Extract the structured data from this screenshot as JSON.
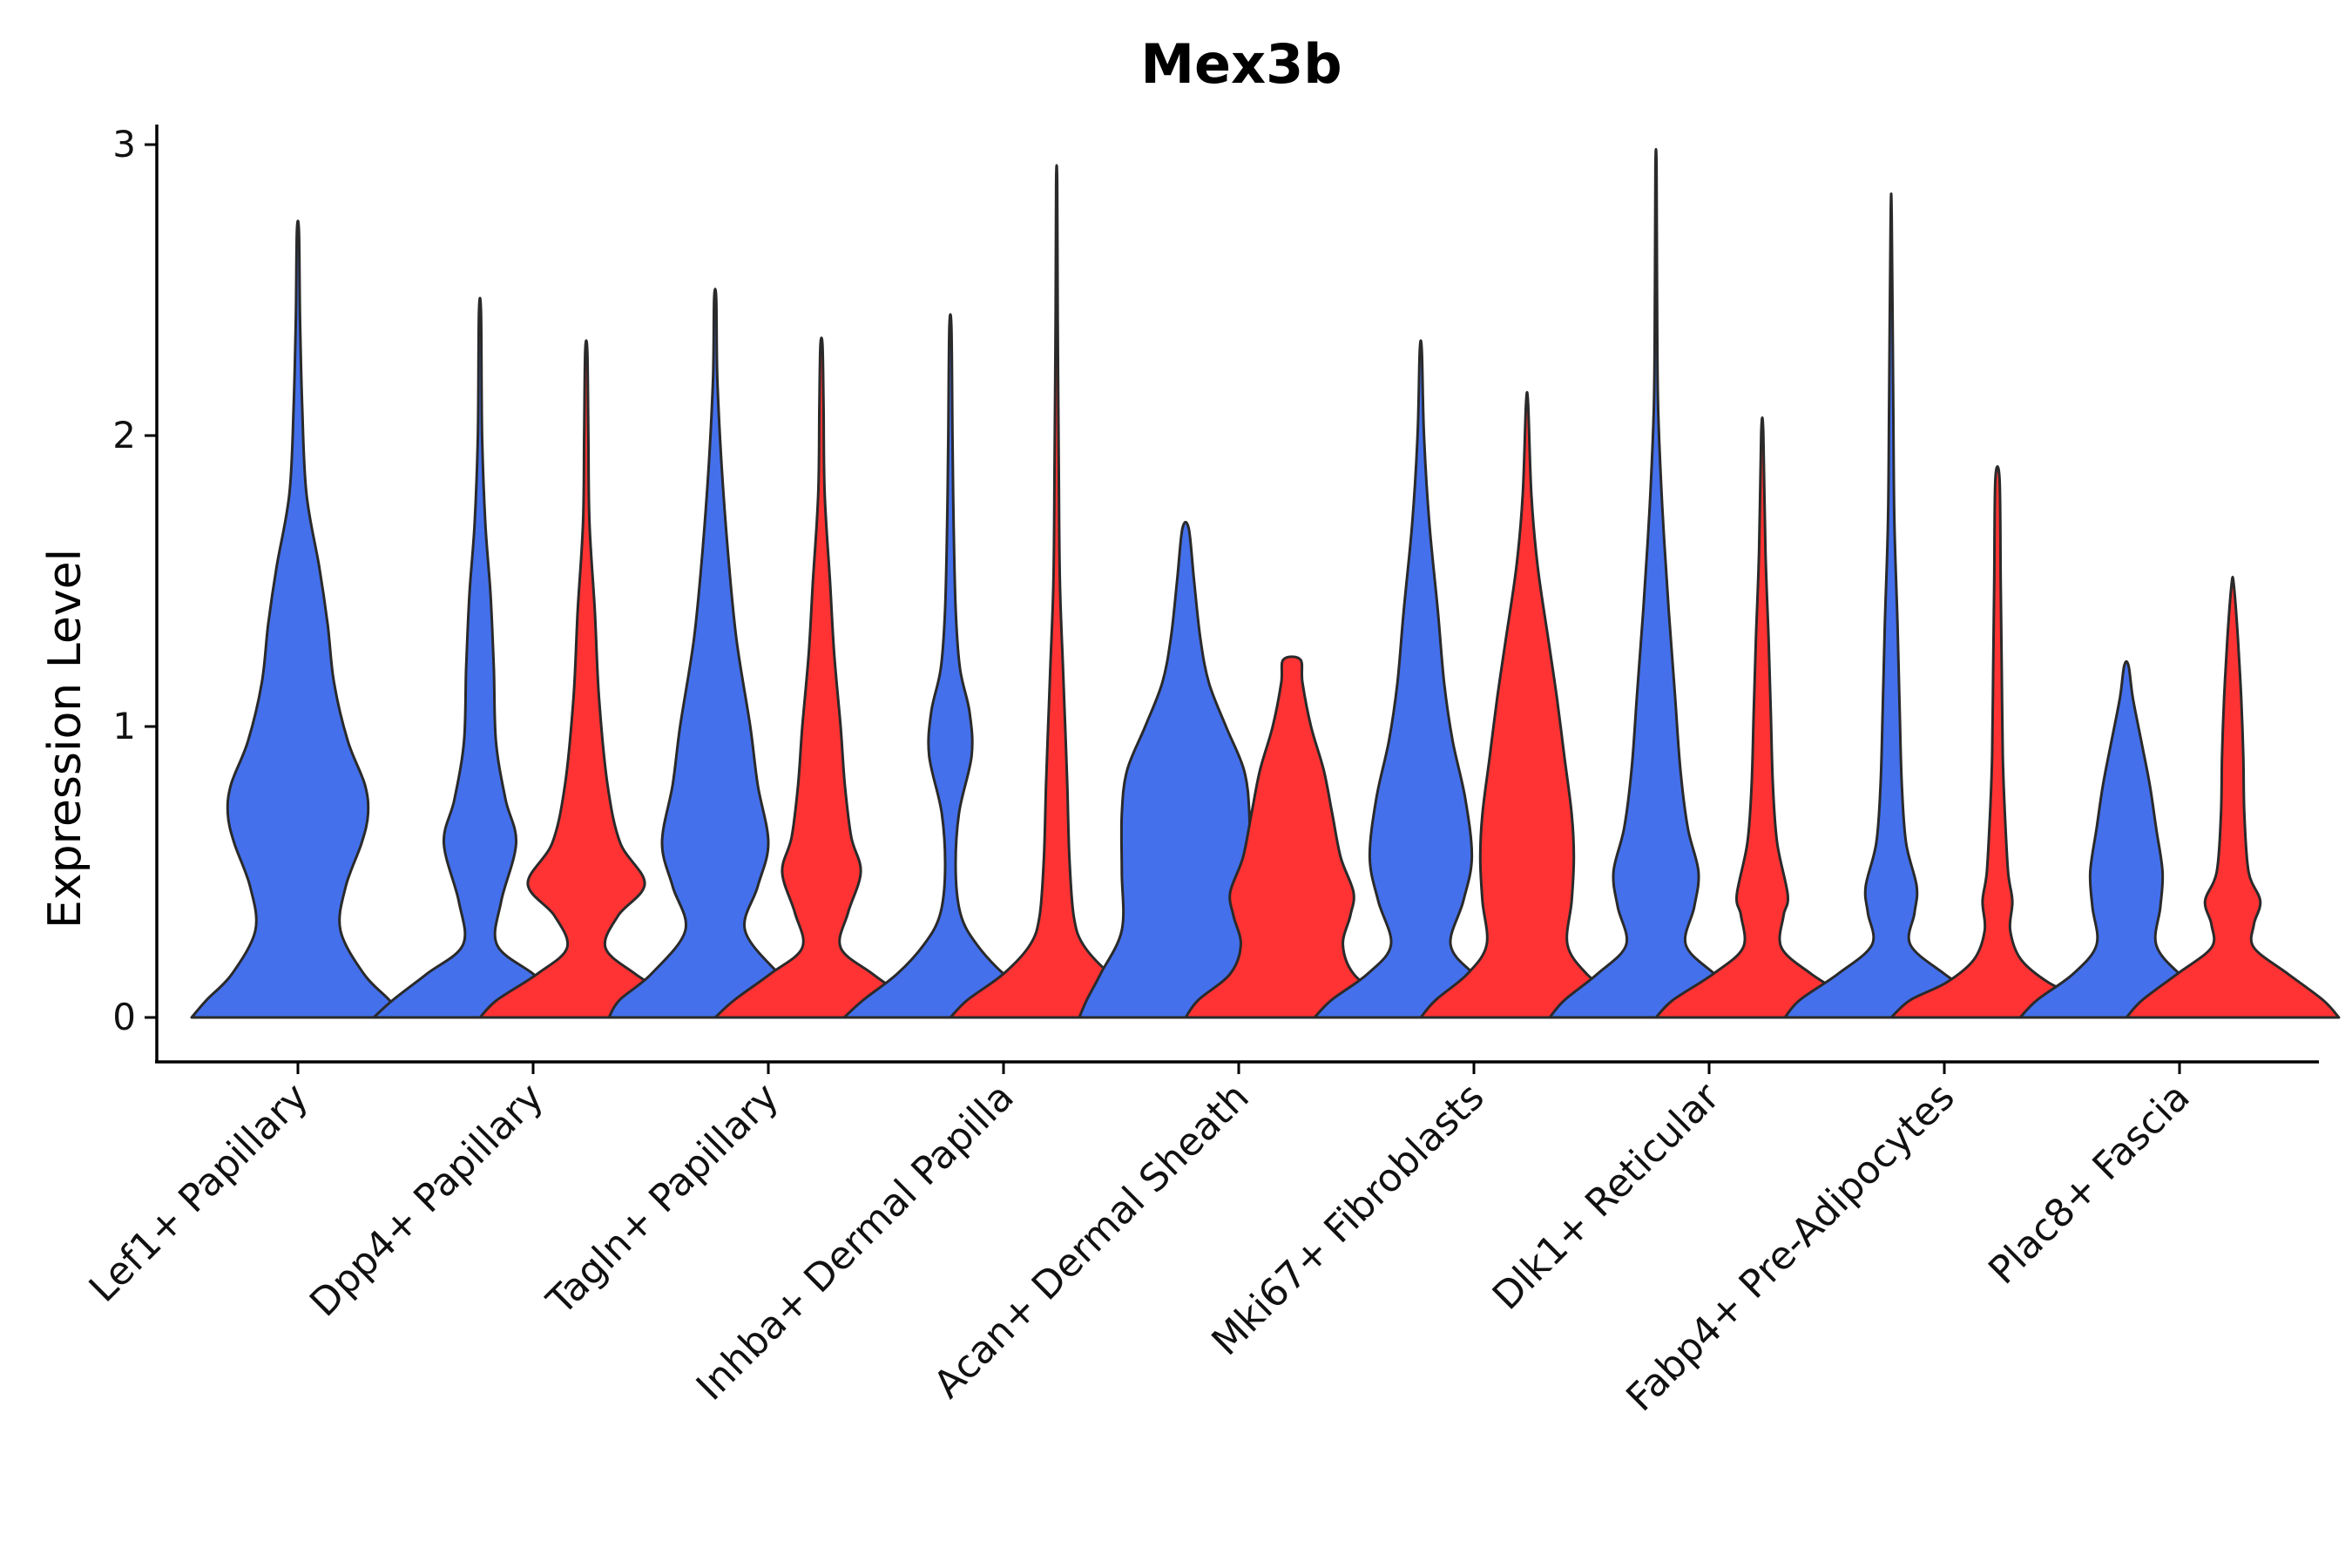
{
  "chart_data": {
    "type": "violin",
    "title": "Mex3b",
    "xlabel": "",
    "ylabel": "Expression Level",
    "ylim": [
      -0.15,
      3.07
    ],
    "yticks": [
      0,
      1,
      2,
      3
    ],
    "colors": {
      "blue": "#4470EC",
      "red": "#FF3333"
    },
    "categories": [
      "Lef1+ Papillary",
      "Dpp4+ Papillary",
      "Tagln+ Papillary",
      "Inhba+ Dermal Papilla",
      "Acan+ Dermal Sheath",
      "Mki67+ Fibroblasts",
      "Dlk1+ Reticular",
      "Fabp4+ Pre-Adipocytes",
      "Plac8+ Fascia"
    ],
    "violins": [
      {
        "category": "Lef1+ Papillary",
        "group": "blue",
        "max": 2.7,
        "profile": [
          [
            0,
            1
          ],
          [
            0.06,
            0.86
          ],
          [
            0.15,
            0.62
          ],
          [
            0.3,
            0.4
          ],
          [
            0.45,
            0.45
          ],
          [
            0.6,
            0.6
          ],
          [
            0.7,
            0.66
          ],
          [
            0.8,
            0.63
          ],
          [
            0.95,
            0.47
          ],
          [
            1.15,
            0.34
          ],
          [
            1.35,
            0.28
          ],
          [
            1.55,
            0.2
          ],
          [
            1.8,
            0.08
          ],
          [
            2.1,
            0.04
          ],
          [
            2.4,
            0.02
          ],
          [
            2.7,
            0.01
          ]
        ]
      },
      {
        "category": "Dpp4+ Papillary",
        "group": "blue",
        "max": 2.42,
        "profile": [
          [
            0,
            1
          ],
          [
            0.06,
            0.82
          ],
          [
            0.15,
            0.5
          ],
          [
            0.25,
            0.16
          ],
          [
            0.4,
            0.2
          ],
          [
            0.6,
            0.34
          ],
          [
            0.75,
            0.24
          ],
          [
            0.95,
            0.15
          ],
          [
            1.2,
            0.13
          ],
          [
            1.45,
            0.1
          ],
          [
            1.7,
            0.05
          ],
          [
            2.0,
            0.02
          ],
          [
            2.42,
            0.01
          ]
        ]
      },
      {
        "category": "Dpp4+ Papillary",
        "group": "red",
        "max": 2.29,
        "profile": [
          [
            0,
            1
          ],
          [
            0.06,
            0.84
          ],
          [
            0.15,
            0.46
          ],
          [
            0.24,
            0.18
          ],
          [
            0.35,
            0.3
          ],
          [
            0.46,
            0.55
          ],
          [
            0.6,
            0.32
          ],
          [
            0.8,
            0.2
          ],
          [
            1.1,
            0.12
          ],
          [
            1.4,
            0.08
          ],
          [
            1.7,
            0.03
          ],
          [
            2.0,
            0.02
          ],
          [
            2.29,
            0.01
          ]
        ]
      },
      {
        "category": "Tagln+ Papillary",
        "group": "blue",
        "max": 2.47,
        "profile": [
          [
            0,
            1
          ],
          [
            0.06,
            0.9
          ],
          [
            0.15,
            0.6
          ],
          [
            0.3,
            0.28
          ],
          [
            0.45,
            0.4
          ],
          [
            0.6,
            0.5
          ],
          [
            0.8,
            0.4
          ],
          [
            1.0,
            0.33
          ],
          [
            1.3,
            0.2
          ],
          [
            1.6,
            0.12
          ],
          [
            1.9,
            0.06
          ],
          [
            2.2,
            0.02
          ],
          [
            2.47,
            0.01
          ]
        ]
      },
      {
        "category": "Tagln+ Papillary",
        "group": "red",
        "max": 2.31,
        "profile": [
          [
            0,
            1
          ],
          [
            0.06,
            0.82
          ],
          [
            0.15,
            0.48
          ],
          [
            0.24,
            0.18
          ],
          [
            0.36,
            0.25
          ],
          [
            0.5,
            0.37
          ],
          [
            0.62,
            0.28
          ],
          [
            0.8,
            0.22
          ],
          [
            1.0,
            0.18
          ],
          [
            1.25,
            0.12
          ],
          [
            1.5,
            0.08
          ],
          [
            1.8,
            0.03
          ],
          [
            2.1,
            0.02
          ],
          [
            2.31,
            0.01
          ]
        ]
      },
      {
        "category": "Inhba+ Dermal Papilla",
        "group": "blue",
        "max": 2.37,
        "profile": [
          [
            0,
            1
          ],
          [
            0.06,
            0.82
          ],
          [
            0.15,
            0.5
          ],
          [
            0.25,
            0.25
          ],
          [
            0.35,
            0.1
          ],
          [
            0.5,
            0.05
          ],
          [
            0.7,
            0.08
          ],
          [
            0.9,
            0.2
          ],
          [
            1.05,
            0.18
          ],
          [
            1.2,
            0.09
          ],
          [
            1.4,
            0.05
          ],
          [
            1.7,
            0.03
          ],
          [
            2.0,
            0.02
          ],
          [
            2.37,
            0.01
          ]
        ]
      },
      {
        "category": "Inhba+ Dermal Papilla",
        "group": "red",
        "max": 2.87,
        "profile": [
          [
            0,
            1
          ],
          [
            0.06,
            0.84
          ],
          [
            0.15,
            0.5
          ],
          [
            0.25,
            0.25
          ],
          [
            0.35,
            0.16
          ],
          [
            0.55,
            0.12
          ],
          [
            0.8,
            0.1
          ],
          [
            1.0,
            0.08
          ],
          [
            1.2,
            0.06
          ],
          [
            1.5,
            0.03
          ],
          [
            1.9,
            0.02
          ],
          [
            2.4,
            0.01
          ],
          [
            2.87,
            0.005
          ]
        ]
      },
      {
        "category": "Acan+ Dermal Sheath",
        "group": "blue",
        "max": 1.68,
        "profile": [
          [
            0,
            1
          ],
          [
            0.06,
            0.93
          ],
          [
            0.15,
            0.8
          ],
          [
            0.3,
            0.6
          ],
          [
            0.5,
            0.6
          ],
          [
            0.7,
            0.6
          ],
          [
            0.85,
            0.55
          ],
          [
            1.0,
            0.38
          ],
          [
            1.15,
            0.22
          ],
          [
            1.3,
            0.14
          ],
          [
            1.5,
            0.08
          ],
          [
            1.68,
            0.03
          ]
        ]
      },
      {
        "category": "Acan+ Dermal Sheath",
        "group": "red",
        "max": 1.23,
        "profile": [
          [
            0,
            1
          ],
          [
            0.06,
            0.88
          ],
          [
            0.15,
            0.58
          ],
          [
            0.25,
            0.48
          ],
          [
            0.35,
            0.55
          ],
          [
            0.43,
            0.58
          ],
          [
            0.55,
            0.46
          ],
          [
            0.7,
            0.38
          ],
          [
            0.85,
            0.3
          ],
          [
            1.0,
            0.18
          ],
          [
            1.15,
            0.1
          ],
          [
            1.23,
            0.08
          ]
        ]
      },
      {
        "category": "Mki67+ Fibroblasts",
        "group": "blue",
        "max": 2.29,
        "profile": [
          [
            0,
            1
          ],
          [
            0.06,
            0.84
          ],
          [
            0.15,
            0.5
          ],
          [
            0.25,
            0.28
          ],
          [
            0.4,
            0.4
          ],
          [
            0.55,
            0.48
          ],
          [
            0.75,
            0.42
          ],
          [
            0.95,
            0.3
          ],
          [
            1.15,
            0.22
          ],
          [
            1.4,
            0.16
          ],
          [
            1.7,
            0.08
          ],
          [
            2.0,
            0.03
          ],
          [
            2.29,
            0.01
          ]
        ]
      },
      {
        "category": "Mki67+ Fibroblasts",
        "group": "red",
        "max": 2.11,
        "profile": [
          [
            0,
            1
          ],
          [
            0.06,
            0.86
          ],
          [
            0.15,
            0.56
          ],
          [
            0.25,
            0.38
          ],
          [
            0.4,
            0.42
          ],
          [
            0.55,
            0.44
          ],
          [
            0.7,
            0.42
          ],
          [
            0.9,
            0.35
          ],
          [
            1.1,
            0.28
          ],
          [
            1.3,
            0.2
          ],
          [
            1.55,
            0.1
          ],
          [
            1.8,
            0.04
          ],
          [
            2.11,
            0.01
          ]
        ]
      },
      {
        "category": "Dlk1+ Reticular",
        "group": "blue",
        "max": 2.93,
        "profile": [
          [
            0,
            1
          ],
          [
            0.06,
            0.86
          ],
          [
            0.15,
            0.55
          ],
          [
            0.25,
            0.28
          ],
          [
            0.38,
            0.36
          ],
          [
            0.5,
            0.4
          ],
          [
            0.65,
            0.3
          ],
          [
            0.85,
            0.23
          ],
          [
            1.1,
            0.18
          ],
          [
            1.4,
            0.12
          ],
          [
            1.75,
            0.06
          ],
          [
            2.1,
            0.02
          ],
          [
            2.5,
            0.01
          ],
          [
            2.93,
            0.005
          ]
        ]
      },
      {
        "category": "Dlk1+ Reticular",
        "group": "red",
        "max": 2.01,
        "profile": [
          [
            0,
            1
          ],
          [
            0.06,
            0.84
          ],
          [
            0.15,
            0.46
          ],
          [
            0.24,
            0.18
          ],
          [
            0.35,
            0.2
          ],
          [
            0.42,
            0.24
          ],
          [
            0.6,
            0.14
          ],
          [
            0.8,
            0.1
          ],
          [
            1.05,
            0.08
          ],
          [
            1.3,
            0.06
          ],
          [
            1.6,
            0.03
          ],
          [
            2.01,
            0.01
          ]
        ]
      },
      {
        "category": "Fabp4+ Pre-Adipocytes",
        "group": "blue",
        "max": 2.75,
        "profile": [
          [
            0,
            1
          ],
          [
            0.06,
            0.86
          ],
          [
            0.15,
            0.5
          ],
          [
            0.25,
            0.18
          ],
          [
            0.36,
            0.22
          ],
          [
            0.45,
            0.24
          ],
          [
            0.6,
            0.14
          ],
          [
            0.8,
            0.1
          ],
          [
            1.05,
            0.08
          ],
          [
            1.35,
            0.06
          ],
          [
            1.7,
            0.03
          ],
          [
            2.1,
            0.02
          ],
          [
            2.75,
            0.005
          ]
        ]
      },
      {
        "category": "Fabp4+ Pre-Adipocytes",
        "group": "red",
        "max": 1.85,
        "profile": [
          [
            0,
            1
          ],
          [
            0.06,
            0.82
          ],
          [
            0.12,
            0.48
          ],
          [
            0.2,
            0.22
          ],
          [
            0.3,
            0.12
          ],
          [
            0.4,
            0.14
          ],
          [
            0.5,
            0.1
          ],
          [
            0.7,
            0.07
          ],
          [
            0.9,
            0.05
          ],
          [
            1.2,
            0.04
          ],
          [
            1.5,
            0.03
          ],
          [
            1.85,
            0.02
          ]
        ]
      },
      {
        "category": "Plac8+ Fascia",
        "group": "blue",
        "max": 1.21,
        "profile": [
          [
            0,
            1
          ],
          [
            0.06,
            0.84
          ],
          [
            0.15,
            0.5
          ],
          [
            0.25,
            0.28
          ],
          [
            0.38,
            0.32
          ],
          [
            0.5,
            0.34
          ],
          [
            0.65,
            0.28
          ],
          [
            0.8,
            0.22
          ],
          [
            0.95,
            0.14
          ],
          [
            1.1,
            0.06
          ],
          [
            1.21,
            0.02
          ]
        ]
      },
      {
        "category": "Plac8+ Fascia",
        "group": "red",
        "max": 1.49,
        "profile": [
          [
            0,
            1
          ],
          [
            0.06,
            0.85
          ],
          [
            0.15,
            0.52
          ],
          [
            0.24,
            0.2
          ],
          [
            0.32,
            0.2
          ],
          [
            0.4,
            0.26
          ],
          [
            0.5,
            0.15
          ],
          [
            0.7,
            0.11
          ],
          [
            0.9,
            0.1
          ],
          [
            1.1,
            0.08
          ],
          [
            1.3,
            0.05
          ],
          [
            1.49,
            0.01
          ]
        ]
      }
    ]
  }
}
